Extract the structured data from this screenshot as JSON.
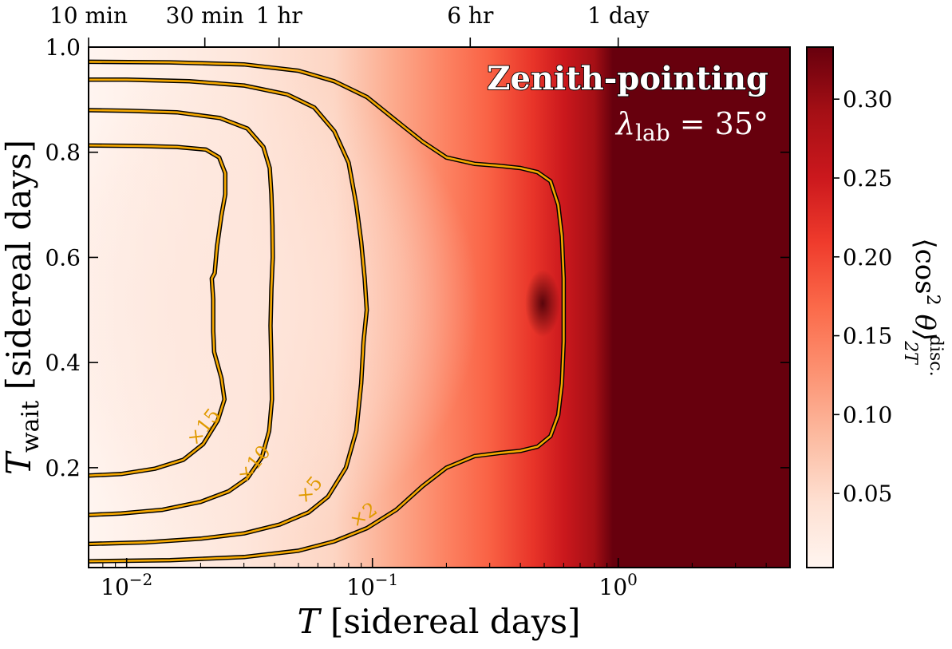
{
  "chart_data": {
    "type": "heatmap",
    "x_scale": "log",
    "xlim": [
      0.007,
      5.0
    ],
    "ylim": [
      0.01,
      1.0
    ],
    "xlabel": {
      "main": "T",
      "rest": " [sidereal days]"
    },
    "ylabel": {
      "main": "T",
      "sub": "wait",
      "rest": " [sidereal days]"
    },
    "x_ticks": [
      {
        "value": 0.01,
        "base": "10",
        "exp": "−2"
      },
      {
        "value": 0.1,
        "base": "10",
        "exp": "−1"
      },
      {
        "value": 1,
        "base": "10",
        "exp": "0"
      }
    ],
    "y_ticks": [
      {
        "value": 0.2,
        "label": "0.2"
      },
      {
        "value": 0.4,
        "label": "0.4"
      },
      {
        "value": 0.6,
        "label": "0.6"
      },
      {
        "value": 0.8,
        "label": "0.8"
      },
      {
        "value": 1.0,
        "label": "1.0"
      }
    ],
    "top_ticks": [
      {
        "value": 0.00694,
        "label": "10 min"
      },
      {
        "value": 0.0208,
        "label": "30 min"
      },
      {
        "value": 0.0417,
        "label": "1 hr"
      },
      {
        "value": 0.25,
        "label": "6 hr"
      },
      {
        "value": 1.0,
        "label": "1 day"
      }
    ],
    "colorbar": {
      "range": [
        0.003,
        0.333
      ],
      "ticks": [
        {
          "value": 0.05,
          "label": "0.05"
        },
        {
          "value": 0.1,
          "label": "0.10"
        },
        {
          "value": 0.15,
          "label": "0.15"
        },
        {
          "value": 0.2,
          "label": "0.20"
        },
        {
          "value": 0.25,
          "label": "0.25"
        },
        {
          "value": 0.3,
          "label": "0.30"
        }
      ],
      "label": {
        "open": "⟨cos",
        "sq": "2",
        "theta": " θ⟩",
        "sub": "2T",
        "sup": "disc."
      },
      "colors": [
        "#fff5f0",
        "#fee0d2",
        "#fcbba1",
        "#fc9272",
        "#fb6a4a",
        "#ef3b2c",
        "#cb181d",
        "#a50f15",
        "#67000d"
      ]
    },
    "annotations": {
      "title": "Zenith-pointing",
      "subtitle_lhs": "λ",
      "subtitle_sub": "lab",
      "subtitle_rhs": " = 35°"
    },
    "contours": [
      {
        "label": "×15",
        "label_pos": {
          "x": 0.0215,
          "y": 0.27
        },
        "label_rot": -52,
        "points": [
          [
            0.007,
            0.185
          ],
          [
            0.0095,
            0.188
          ],
          [
            0.013,
            0.198
          ],
          [
            0.017,
            0.215
          ],
          [
            0.0205,
            0.245
          ],
          [
            0.0235,
            0.29
          ],
          [
            0.025,
            0.33
          ],
          [
            0.0243,
            0.37
          ],
          [
            0.0227,
            0.42
          ],
          [
            0.0225,
            0.46
          ],
          [
            0.0225,
            0.52
          ],
          [
            0.0222,
            0.56
          ],
          [
            0.0228,
            0.57
          ],
          [
            0.0233,
            0.62
          ],
          [
            0.0243,
            0.68
          ],
          [
            0.0252,
            0.72
          ],
          [
            0.0252,
            0.76
          ],
          [
            0.0238,
            0.79
          ],
          [
            0.021,
            0.805
          ],
          [
            0.016,
            0.81
          ],
          [
            0.011,
            0.812
          ],
          [
            0.007,
            0.813
          ]
        ]
      },
      {
        "label": "×10",
        "label_pos": {
          "x": 0.0345,
          "y": 0.2
        },
        "label_rot": -52,
        "points": [
          [
            0.007,
            0.11
          ],
          [
            0.0095,
            0.113
          ],
          [
            0.014,
            0.12
          ],
          [
            0.02,
            0.135
          ],
          [
            0.026,
            0.155
          ],
          [
            0.031,
            0.18
          ],
          [
            0.0355,
            0.22
          ],
          [
            0.038,
            0.27
          ],
          [
            0.039,
            0.33
          ],
          [
            0.0388,
            0.4
          ],
          [
            0.0385,
            0.47
          ],
          [
            0.0388,
            0.54
          ],
          [
            0.0393,
            0.6
          ],
          [
            0.0392,
            0.66
          ],
          [
            0.0388,
            0.72
          ],
          [
            0.0382,
            0.77
          ],
          [
            0.036,
            0.81
          ],
          [
            0.031,
            0.845
          ],
          [
            0.024,
            0.865
          ],
          [
            0.016,
            0.876
          ],
          [
            0.01,
            0.879
          ],
          [
            0.007,
            0.88
          ]
        ]
      },
      {
        "label": "×5",
        "label_pos": {
          "x": 0.058,
          "y": 0.15
        },
        "label_rot": -50,
        "points": [
          [
            0.007,
            0.055
          ],
          [
            0.012,
            0.058
          ],
          [
            0.02,
            0.065
          ],
          [
            0.03,
            0.075
          ],
          [
            0.042,
            0.092
          ],
          [
            0.055,
            0.115
          ],
          [
            0.066,
            0.145
          ],
          [
            0.078,
            0.2
          ],
          [
            0.086,
            0.27
          ],
          [
            0.09,
            0.36
          ],
          [
            0.092,
            0.44
          ],
          [
            0.0948,
            0.5
          ],
          [
            0.093,
            0.56
          ],
          [
            0.09,
            0.63
          ],
          [
            0.086,
            0.7
          ],
          [
            0.08,
            0.78
          ],
          [
            0.07,
            0.84
          ],
          [
            0.058,
            0.885
          ],
          [
            0.045,
            0.91
          ],
          [
            0.03,
            0.927
          ],
          [
            0.018,
            0.935
          ],
          [
            0.01,
            0.938
          ],
          [
            0.007,
            0.938
          ]
        ]
      },
      {
        "label": "×2",
        "label_pos": {
          "x": 0.095,
          "y": 0.1
        },
        "label_rot": -35,
        "points": [
          [
            0.007,
            0.022
          ],
          [
            0.015,
            0.024
          ],
          [
            0.03,
            0.03
          ],
          [
            0.05,
            0.042
          ],
          [
            0.07,
            0.06
          ],
          [
            0.095,
            0.085
          ],
          [
            0.125,
            0.12
          ],
          [
            0.16,
            0.165
          ],
          [
            0.2,
            0.2
          ],
          [
            0.26,
            0.222
          ],
          [
            0.33,
            0.228
          ],
          [
            0.4,
            0.232
          ],
          [
            0.47,
            0.24
          ],
          [
            0.53,
            0.26
          ],
          [
            0.57,
            0.3
          ],
          [
            0.59,
            0.36
          ],
          [
            0.6,
            0.44
          ],
          [
            0.6,
            0.56
          ],
          [
            0.59,
            0.64
          ],
          [
            0.57,
            0.7
          ],
          [
            0.53,
            0.745
          ],
          [
            0.47,
            0.762
          ],
          [
            0.4,
            0.77
          ],
          [
            0.33,
            0.774
          ],
          [
            0.26,
            0.778
          ],
          [
            0.2,
            0.79
          ],
          [
            0.16,
            0.82
          ],
          [
            0.125,
            0.86
          ],
          [
            0.095,
            0.905
          ],
          [
            0.07,
            0.935
          ],
          [
            0.05,
            0.955
          ],
          [
            0.03,
            0.967
          ],
          [
            0.015,
            0.971
          ],
          [
            0.007,
            0.972
          ]
        ]
      }
    ]
  }
}
